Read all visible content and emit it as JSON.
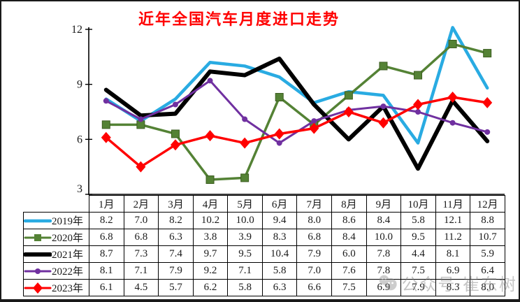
{
  "chart_data": {
    "type": "line",
    "title": "近年全国汽车月度进口走势",
    "title_color": "#FF0000",
    "categories": [
      "1月",
      "2月",
      "3月",
      "4月",
      "5月",
      "6月",
      "7月",
      "8月",
      "9月",
      "10月",
      "11月",
      "12月"
    ],
    "series": [
      {
        "name": "2019年",
        "color": "#29ABE2",
        "marker": "none",
        "line_width": 4.5,
        "values": [
          8.2,
          7.0,
          8.2,
          10.2,
          10.0,
          9.4,
          8.0,
          8.6,
          8.4,
          5.8,
          12.1,
          8.8
        ]
      },
      {
        "name": "2020年",
        "color": "#548235",
        "marker": "square",
        "line_width": 3.5,
        "values": [
          6.8,
          6.8,
          6.3,
          3.8,
          3.9,
          8.3,
          6.8,
          8.4,
          10.0,
          9.5,
          11.2,
          10.7
        ]
      },
      {
        "name": "2021年",
        "color": "#000000",
        "marker": "none",
        "line_width": 6,
        "values": [
          8.7,
          7.3,
          7.4,
          9.7,
          9.5,
          10.4,
          7.9,
          6.0,
          7.8,
          4.4,
          8.1,
          5.9
        ]
      },
      {
        "name": "2022年",
        "color": "#7030A0",
        "marker": "circle",
        "line_width": 3,
        "values": [
          8.1,
          7.1,
          7.9,
          9.2,
          7.1,
          5.8,
          7.0,
          7.6,
          7.8,
          7.5,
          6.9,
          6.4
        ]
      },
      {
        "name": "2023年",
        "color": "#FF0000",
        "marker": "diamond",
        "line_width": 3.5,
        "values": [
          6.1,
          4.5,
          5.7,
          6.2,
          5.8,
          6.3,
          6.6,
          7.5,
          6.9,
          7.9,
          8.3,
          8.0
        ]
      }
    ],
    "ylim": [
      3,
      12
    ],
    "yticks": [
      3,
      6,
      9,
      12
    ],
    "grid": false,
    "legend_position": "table-left-column",
    "value_decimals": 1
  },
  "watermark": {
    "text": "公众号·崔东树",
    "icon": "wechat-avatar-icon"
  }
}
